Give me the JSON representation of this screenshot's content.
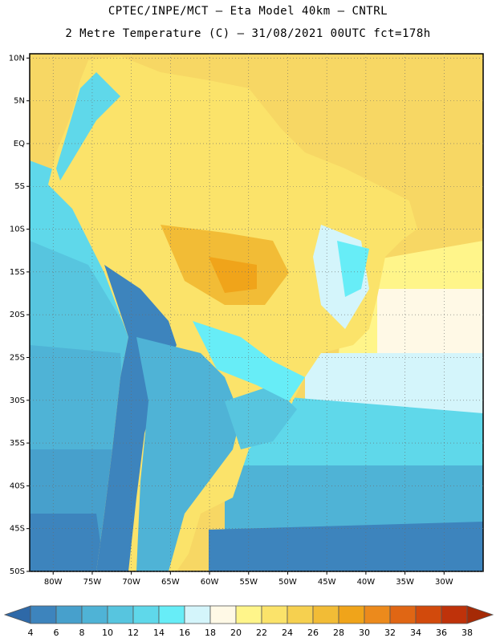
{
  "header": {
    "line1": "CPTEC/INPE/MCT  –  Eta Model 40km  –  CNTRL",
    "line2": "2 Metre Temperature (C) – 31/08/2021 00UTC fct=178h"
  },
  "map": {
    "lat_labels": [
      "10N",
      "5N",
      "EQ",
      "5S",
      "10S",
      "15S",
      "20S",
      "25S",
      "30S",
      "35S",
      "40S",
      "45S",
      "50S"
    ],
    "lon_labels": [
      "80W",
      "75W",
      "70W",
      "65W",
      "60W",
      "55W",
      "50W",
      "45W",
      "40W",
      "35W",
      "30W"
    ],
    "lat_range": [
      10.5,
      -50
    ],
    "lon_range": [
      -83,
      -25
    ]
  },
  "colorbar": {
    "levels": [
      "4",
      "6",
      "8",
      "10",
      "12",
      "14",
      "16",
      "18",
      "20",
      "22",
      "24",
      "26",
      "28",
      "30",
      "32",
      "34",
      "36",
      "38"
    ],
    "colors": [
      "#2e69a8",
      "#3d84bd",
      "#47a0cc",
      "#4fb3d6",
      "#57c5df",
      "#5fd8ea",
      "#67edf7",
      "#d4f5fb",
      "#fff9e6",
      "#fff58a",
      "#fbe36a",
      "#f6d04f",
      "#f2bc36",
      "#f0a41a",
      "#ec8a1c",
      "#e06614",
      "#d24a0c",
      "#bf320a",
      "#a52a06"
    ]
  },
  "legend_colors": {
    "ocean_warm": "#fae27a",
    "land_warm": "#f7d96a",
    "cool": "#5fd8ea",
    "cold": "#2e69a8"
  }
}
